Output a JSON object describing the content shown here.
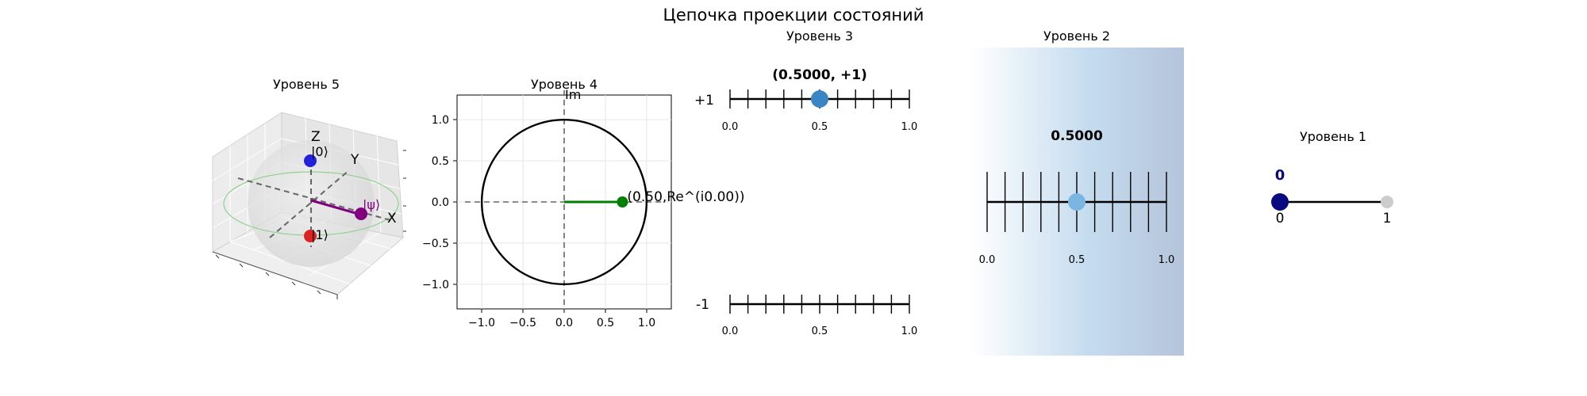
{
  "figure": {
    "title": "Цепочка проекции состояний"
  },
  "panels": {
    "level5": {
      "title": "Уровень 5",
      "axis_labels": {
        "x": "X",
        "y": "Y",
        "z": "Z"
      },
      "state_labels": {
        "zero": "|0⟩",
        "one": "|1⟩",
        "psi": "|ψ⟩"
      },
      "colors": {
        "zero": "#2222dd",
        "one": "#dd2222",
        "psi": "#800080",
        "equator": "#8fd18f"
      }
    },
    "level4": {
      "title": "Уровень 4",
      "axis_label_im": "Im",
      "point_label": "(0.50,Re^(i0.00))",
      "ticks": [
        "−1.0",
        "−0.5",
        "0.0",
        "0.5",
        "1.0"
      ],
      "yticks": [
        "1.0",
        "0.5",
        "0.0",
        "−0.5",
        "−1.0"
      ],
      "chart_data": {
        "type": "scatter",
        "xlim": [
          -1.3,
          1.3
        ],
        "ylim": [
          -1.3,
          1.3
        ],
        "grid": true,
        "point": {
          "x": 0.707,
          "y": 0.0
        },
        "unit_circle_radius": 1.0
      },
      "colors": {
        "vector": "#008000"
      }
    },
    "level3": {
      "title": "Уровень 3",
      "annotation": "(0.5000, +1)",
      "row_labels": {
        "plus": "+1",
        "minus": "-1"
      },
      "tick_labels": [
        "0.0",
        "0.5",
        "1.0"
      ],
      "chart_data": {
        "type": "scatter",
        "xlim": [
          0,
          1
        ],
        "point": {
          "x": 0.5,
          "row": "+1"
        }
      },
      "colors": {
        "point": "#3a86c4"
      }
    },
    "level2": {
      "title": "Уровень 2",
      "annotation": "0.5000",
      "tick_labels": [
        "0.0",
        "0.5",
        "1.0"
      ],
      "chart_data": {
        "type": "scatter",
        "xlim": [
          0,
          1
        ],
        "point": {
          "x": 0.5
        }
      },
      "colors": {
        "point": "#7bb6e0",
        "gradient_start": "#ffffff",
        "gradient_mid": "#c5dcef",
        "gradient_end": "#b5c4da"
      }
    },
    "level1": {
      "title": "Уровень 1",
      "value_label": "0",
      "endpoint_labels": {
        "zero": "0",
        "one": "1"
      },
      "colors": {
        "active": "#0a0a80",
        "inactive": "#cccccc",
        "value": "#0a0a80"
      }
    }
  }
}
